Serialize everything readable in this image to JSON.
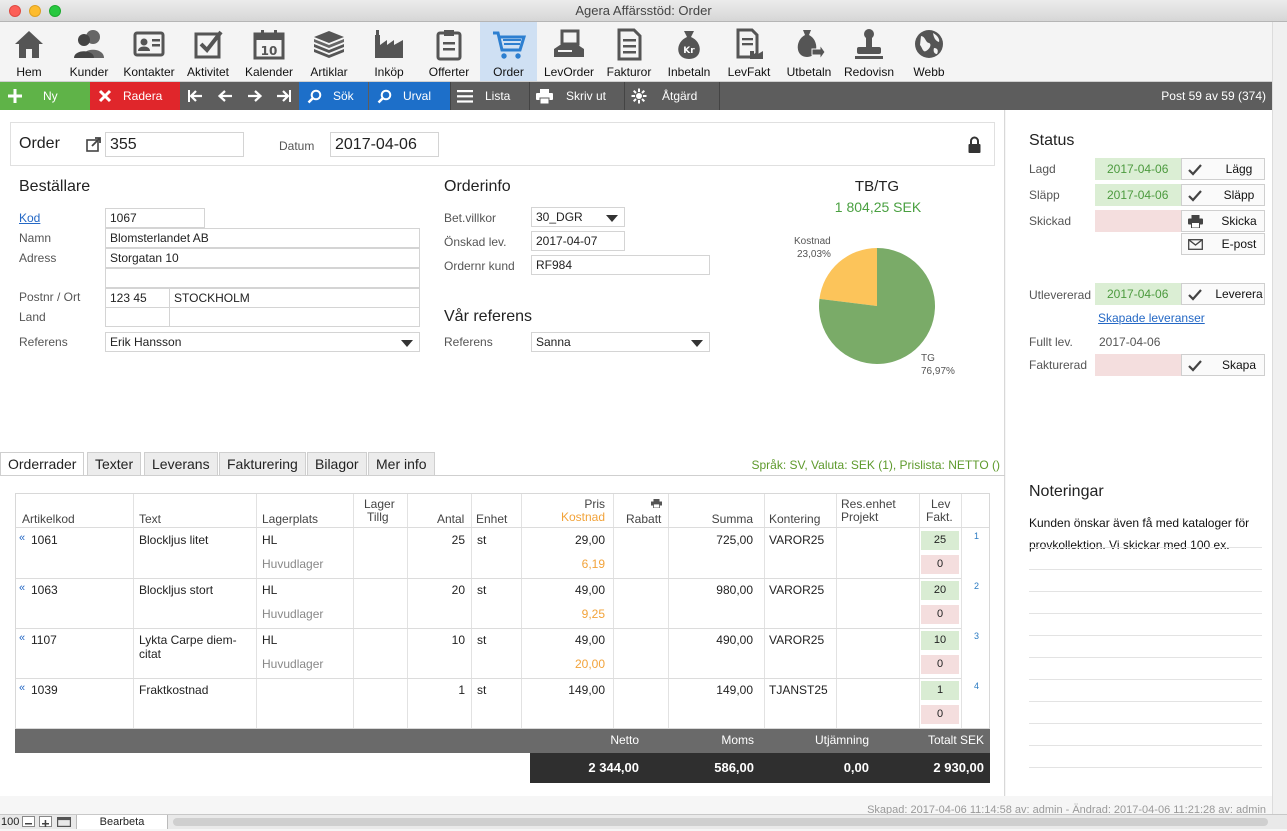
{
  "window": {
    "title": "Agera Affärsstöd: Order"
  },
  "toolbar": [
    {
      "label": "Hem",
      "icon": "home-icon"
    },
    {
      "label": "Kunder",
      "icon": "customers-icon"
    },
    {
      "label": "Kontakter",
      "icon": "contacts-icon"
    },
    {
      "label": "Aktivitet",
      "icon": "activity-icon"
    },
    {
      "label": "Kalender",
      "icon": "calendar-icon"
    },
    {
      "label": "Artiklar",
      "icon": "articles-icon"
    },
    {
      "label": "Inköp",
      "icon": "purchase-icon"
    },
    {
      "label": "Offerter",
      "icon": "quotes-icon"
    },
    {
      "label": "Order",
      "icon": "cart-icon"
    },
    {
      "label": "LevOrder",
      "icon": "supplier-order-icon"
    },
    {
      "label": "Fakturor",
      "icon": "invoices-icon"
    },
    {
      "label": "Inbetaln",
      "icon": "money-bag-icon"
    },
    {
      "label": "LevFakt",
      "icon": "supplier-invoice-icon"
    },
    {
      "label": "Utbetaln",
      "icon": "payout-icon"
    },
    {
      "label": "Redovisn",
      "icon": "accounting-stamp-icon"
    },
    {
      "label": "Webb",
      "icon": "globe-icon"
    }
  ],
  "actions": {
    "new": "Ny",
    "delete": "Radera",
    "search": "Sök",
    "filter": "Urval",
    "list": "Lista",
    "print": "Skriv ut",
    "action": "Åtgärd",
    "record": "Post 59 av 59 (374)"
  },
  "order": {
    "label": "Order",
    "number": "355",
    "date_label": "Datum",
    "date": "2017-04-06"
  },
  "customer": {
    "heading": "Beställare",
    "code_label": "Kod",
    "code": "1067",
    "name_label": "Namn",
    "name": "Blomsterlandet AB",
    "address_label": "Adress",
    "address1": "Storgatan 10",
    "address2": "",
    "zip_label": "Postnr / Ort",
    "zip": "123 45",
    "city": "STOCKHOLM",
    "country_label": "Land",
    "country": "",
    "reference_label": "Referens",
    "reference": "Erik Hansson"
  },
  "orderinfo": {
    "heading": "Orderinfo",
    "terms_label": "Bet.villkor",
    "terms": "30_DGR",
    "wanted_label": "Önskad lev.",
    "wanted": "2017-04-07",
    "custno_label": "Ordernr kund",
    "custno": "RF984"
  },
  "our_ref": {
    "heading": "Vår referens",
    "label": "Referens",
    "value": "Sanna"
  },
  "chart_data": {
    "type": "pie",
    "title": "TB/TG",
    "subtitle": "1 804,25 SEK",
    "slices": [
      {
        "name": "Kostnad",
        "label": "23,03%",
        "value": 23.03,
        "color": "#fcc45a"
      },
      {
        "name": "TG",
        "label": "76,97%",
        "value": 76.97,
        "color": "#7aab68"
      }
    ]
  },
  "tabs": [
    "Orderrader",
    "Texter",
    "Leverans",
    "Fakturering",
    "Bilagor",
    "Mer info"
  ],
  "tabinfo": "Språk: SV, Valuta: SEK (1), Prislista: NETTO ()",
  "grid": {
    "headers": {
      "code": "Artikelkod",
      "text": "Text",
      "location": "Lagerplats",
      "stock1": "Lager",
      "stock2": "Tillg",
      "qty": "Antal",
      "unit": "Enhet",
      "price": "Pris",
      "cost": "Kostnad",
      "discount": "Rabatt",
      "sum": "Summa",
      "account": "Kontering",
      "unit_proj1": "Res.enhet",
      "unit_proj2": "Projekt",
      "lev1": "Lev",
      "lev2": "Fakt."
    },
    "rows": [
      {
        "code": "1061",
        "text": "Blockljus litet",
        "text2": "",
        "loc": "HL",
        "store": "Huvudlager",
        "qty": "25",
        "unit": "st",
        "price": "29,00",
        "cost": "6,19",
        "sum": "725,00",
        "account": "VAROR25",
        "lev": "25",
        "fakt": "0",
        "no": "1"
      },
      {
        "code": "1063",
        "text": "Blockljus stort",
        "text2": "",
        "loc": "HL",
        "store": "Huvudlager",
        "qty": "20",
        "unit": "st",
        "price": "49,00",
        "cost": "9,25",
        "sum": "980,00",
        "account": "VAROR25",
        "lev": "20",
        "fakt": "0",
        "no": "2"
      },
      {
        "code": "1107",
        "text": "Lykta Carpe diem-",
        "text2": "citat",
        "loc": "HL",
        "store": "Huvudlager",
        "qty": "10",
        "unit": "st",
        "price": "49,00",
        "cost": "20,00",
        "sum": "490,00",
        "account": "VAROR25",
        "lev": "10",
        "fakt": "0",
        "no": "3"
      },
      {
        "code": "1039",
        "text": "Fraktkostnad",
        "text2": "",
        "loc": "",
        "store": "",
        "qty": "1",
        "unit": "st",
        "price": "149,00",
        "cost": "",
        "sum": "149,00",
        "account": "TJANST25",
        "lev": "1",
        "fakt": "0",
        "no": "4"
      }
    ]
  },
  "totals": {
    "net_label": "Netto",
    "net": "2 344,00",
    "vat_label": "Moms",
    "vat": "586,00",
    "round_label": "Utjämning",
    "round": "0,00",
    "total_label": "Totalt SEK",
    "total": "2 930,00"
  },
  "status": {
    "heading": "Status",
    "placed_label": "Lagd",
    "placed": "2017-04-06",
    "placed_btn": "Lägg",
    "released_label": "Släpp",
    "released": "2017-04-06",
    "released_btn": "Släpp",
    "sent_label": "Skickad",
    "sent": "",
    "send_btn": "Skicka",
    "email_btn": "E-post",
    "delivered_label": "Utlevererad",
    "delivered": "2017-04-06",
    "deliver_btn": "Leverera",
    "deliveries_link": "Skapade leveranser",
    "full_label": "Fullt lev.",
    "full": "2017-04-06",
    "invoiced_label": "Fakturerad",
    "invoiced": "",
    "create_btn": "Skapa"
  },
  "notes": {
    "heading": "Noteringar",
    "line1": "Kunden önskar även få med kataloger för",
    "line2": "provkollektion. Vi skickar med 100 ex."
  },
  "footer": {
    "meta": "Skapad: 2017-04-06 11:14:58 av: admin - Ändrad: 2017-04-06 11:21:28 av: admin",
    "zoom": "100",
    "mode": "Bearbeta"
  }
}
